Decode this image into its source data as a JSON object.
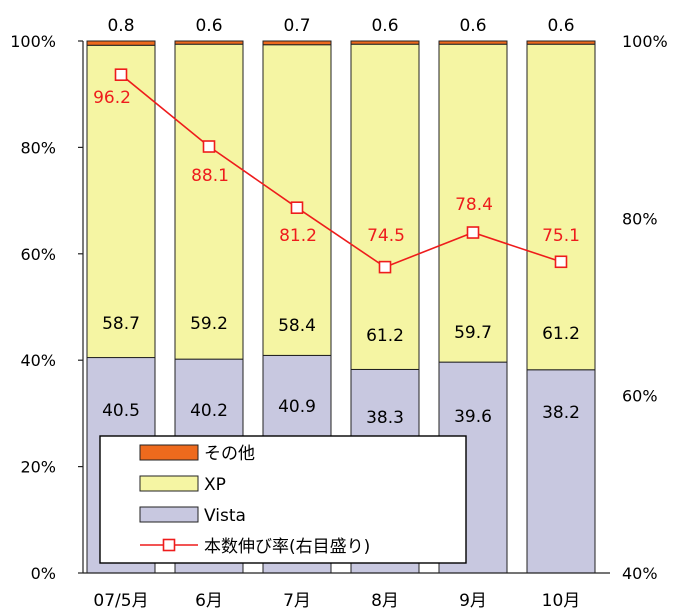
{
  "chart_data": {
    "type": "bar",
    "stacked": true,
    "percent_stacked": true,
    "categories": [
      "07/5月",
      "6月",
      "7月",
      "8月",
      "9月",
      "10月"
    ],
    "series": [
      {
        "name": "Vista",
        "values": [
          40.5,
          40.2,
          40.9,
          38.3,
          39.6,
          38.2
        ]
      },
      {
        "name": "XP",
        "values": [
          58.7,
          59.2,
          58.4,
          61.2,
          59.7,
          61.2
        ]
      },
      {
        "name": "その他",
        "values": [
          0.8,
          0.6,
          0.7,
          0.6,
          0.6,
          0.6
        ]
      }
    ],
    "line_series": {
      "name": "本数伸び率(右目盛り)",
      "axis": "right",
      "values": [
        96.2,
        88.1,
        81.2,
        74.5,
        78.4,
        75.1
      ]
    },
    "left_axis": {
      "ylim": [
        0,
        100
      ],
      "ticks": [
        "0%",
        "20%",
        "40%",
        "60%",
        "80%",
        "100%"
      ]
    },
    "right_axis": {
      "ylim": [
        40,
        100
      ],
      "ticks": [
        "40%",
        "60%",
        "80%",
        "100%"
      ]
    },
    "legend_items": [
      "その他",
      "XP",
      "Vista",
      "本数伸び率(右目盛り)"
    ],
    "legend_placement": "bottom-left inside plot",
    "grid": false,
    "colors": {
      "Vista": "#c8c8e0",
      "XP": "#f5f5a3",
      "その他": "#ee6a1d",
      "line": "#ee1c1c",
      "marker_fill": "#ffffff",
      "outline": "#222222"
    }
  }
}
